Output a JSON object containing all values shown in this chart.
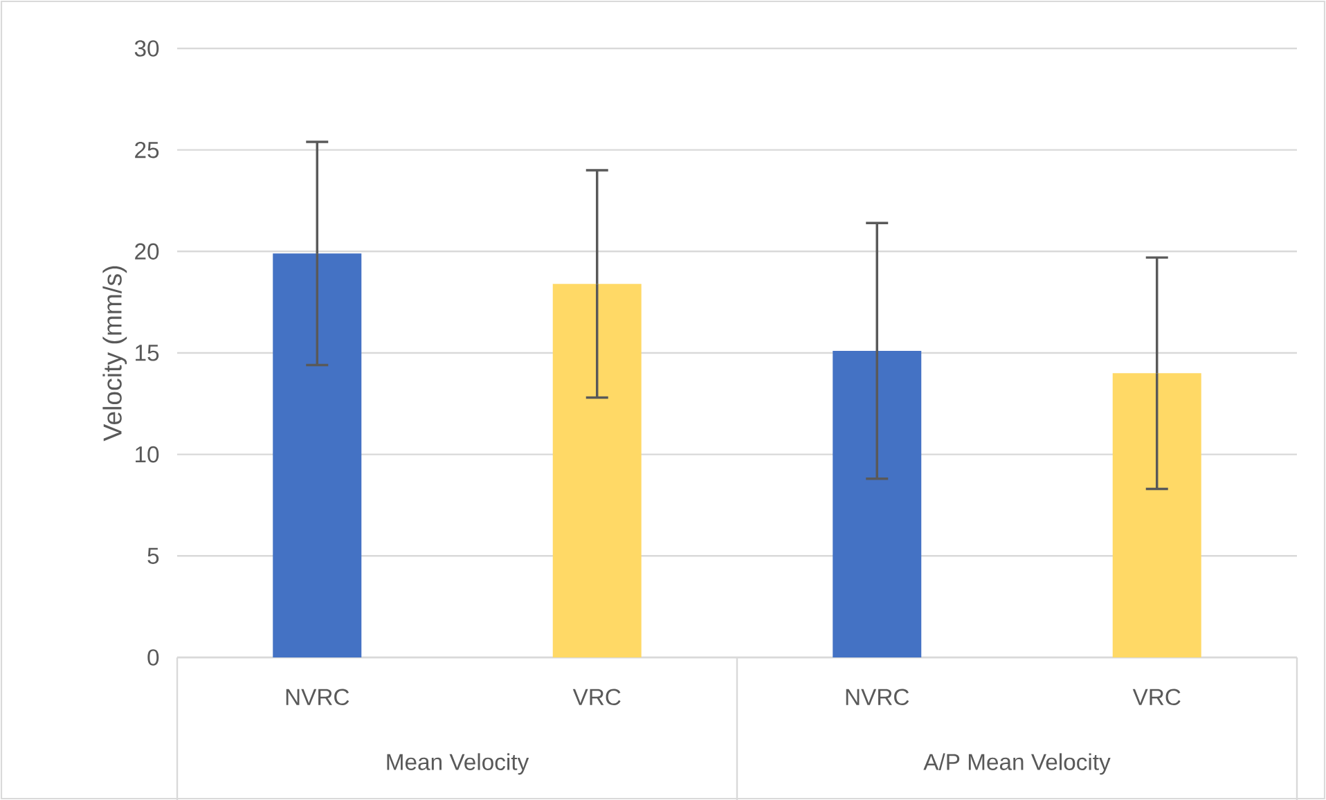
{
  "chart_data": {
    "type": "bar",
    "ylabel": "Velocity (mm/s)",
    "categories": [
      "NVRC",
      "VRC",
      "NVRC",
      "VRC"
    ],
    "values": [
      19.9,
      18.4,
      15.1,
      14.0
    ],
    "colors": [
      "#4472c4",
      "#ffd966",
      "#4472c4",
      "#ffd966"
    ],
    "errors": [
      5.5,
      5.6,
      6.3,
      5.7
    ],
    "ylim": [
      0,
      30
    ],
    "yticks": [
      0,
      5,
      10,
      15,
      20,
      25,
      30
    ],
    "grid": "y",
    "annotations": [
      "Mean Velocity",
      "A/P Mean Velocity"
    ]
  }
}
